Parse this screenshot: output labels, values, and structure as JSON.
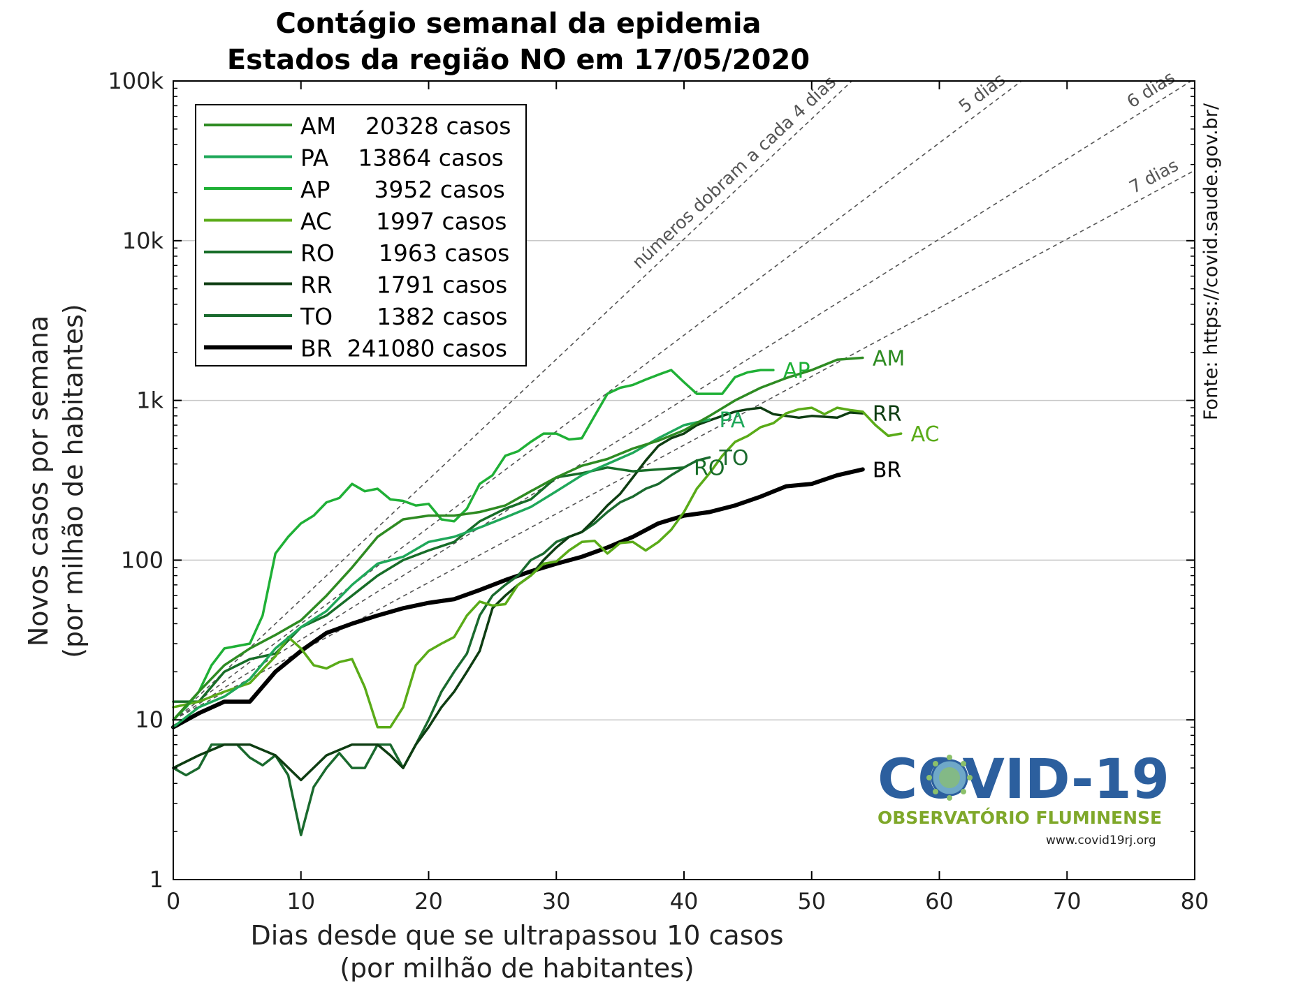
{
  "title_line1": "Contágio semanal da epidemia",
  "title_line2": "Estados da região NO em 17/05/2020",
  "source": "Fonte: https://covid.saude.gov.br/",
  "logo": {
    "main": "COVID-19",
    "sub": "OBSERVATÓRIO FLUMINENSE",
    "url": "www.covid19rj.org"
  },
  "chart_data": {
    "type": "line",
    "title": "Contágio semanal da epidemia / Estados da região NO em 17/05/2020",
    "xlabel_line1": "Dias desde que se ultrapassou 10 casos",
    "xlabel_line2": "(por milhão de habitantes)",
    "ylabel_line1": "Novos casos por semana",
    "ylabel_line2": "(por milhão de habitantes)",
    "xlim": [
      0,
      80
    ],
    "ylim": [
      1,
      100000
    ],
    "yscale": "log",
    "grid": "horizontal",
    "legend_position": "top-left",
    "x_ticks": [
      0,
      10,
      20,
      30,
      40,
      50,
      60,
      70,
      80
    ],
    "x_tick_labels": [
      "0",
      "10",
      "20",
      "30",
      "40",
      "50",
      "60",
      "70",
      "80"
    ],
    "y_ticks": [
      1,
      10,
      100,
      1000,
      10000,
      100000
    ],
    "y_tick_labels": [
      "1",
      "10",
      "100",
      "1k",
      "10k",
      "100k"
    ],
    "doubling_lines": [
      {
        "days": 4,
        "label": "números dobram a cada 4 dias"
      },
      {
        "days": 5,
        "label": "5 dias"
      },
      {
        "days": 6,
        "label": "6 dias"
      },
      {
        "days": 7,
        "label": "7 dias"
      }
    ],
    "doubling_origin_y": 10,
    "series": [
      {
        "name": "AM",
        "legend": "AM    20328 casos",
        "color": "#2e8b22",
        "end_label": "AM",
        "x": [
          0,
          2,
          4,
          6,
          8,
          10,
          12,
          14,
          16,
          18,
          20,
          22,
          24,
          26,
          28,
          30,
          32,
          34,
          36,
          38,
          40,
          42,
          44,
          46,
          48,
          50,
          52,
          54
        ],
        "y": [
          10,
          15,
          22,
          28,
          34,
          42,
          60,
          90,
          140,
          180,
          190,
          190,
          200,
          220,
          270,
          330,
          390,
          430,
          500,
          560,
          650,
          800,
          1000,
          1200,
          1380,
          1550,
          1800,
          1850
        ]
      },
      {
        "name": "PA",
        "legend": "PA    13864 casos",
        "color": "#1fa85a",
        "end_label": "PA",
        "x": [
          0,
          2,
          4,
          6,
          8,
          10,
          12,
          14,
          16,
          18,
          20,
          22,
          24,
          26,
          28,
          30,
          32,
          34,
          36,
          38,
          40,
          42
        ],
        "y": [
          9,
          12,
          14,
          18,
          28,
          38,
          48,
          70,
          95,
          105,
          130,
          140,
          160,
          185,
          215,
          270,
          340,
          400,
          470,
          580,
          700,
          760
        ]
      },
      {
        "name": "AP",
        "legend": "AP      3952 casos",
        "color": "#1fb036",
        "end_label": "AP",
        "x": [
          0,
          1,
          2,
          3,
          4,
          6,
          7,
          8,
          9,
          10,
          11,
          12,
          13,
          14,
          15,
          16,
          17,
          18,
          19,
          20,
          21,
          22,
          23,
          24,
          25,
          26,
          27,
          28,
          29,
          30,
          31,
          32,
          33,
          34,
          35,
          36,
          37,
          38,
          39,
          40,
          41,
          42,
          43,
          44,
          45,
          46,
          47
        ],
        "y": [
          10,
          12,
          15,
          22,
          28,
          30,
          45,
          110,
          140,
          170,
          190,
          230,
          245,
          300,
          270,
          280,
          240,
          235,
          220,
          225,
          180,
          175,
          210,
          300,
          340,
          450,
          480,
          550,
          620,
          620,
          570,
          580,
          800,
          1100,
          1200,
          1250,
          1350,
          1450,
          1550,
          1300,
          1100,
          1100,
          1100,
          1400,
          1500,
          1550,
          1550
        ]
      },
      {
        "name": "AC",
        "legend": "AC      1997 casos",
        "color": "#5aab18",
        "end_label": "AC",
        "x": [
          0,
          2,
          4,
          6,
          8,
          9,
          10,
          11,
          12,
          13,
          14,
          15,
          16,
          17,
          18,
          19,
          20,
          21,
          22,
          23,
          24,
          25,
          26,
          27,
          28,
          29,
          30,
          31,
          32,
          33,
          34,
          35,
          36,
          37,
          38,
          39,
          40,
          41,
          42,
          43,
          44,
          45,
          46,
          47,
          48,
          49,
          50,
          51,
          52,
          53,
          54,
          55,
          56,
          57
        ],
        "y": [
          12,
          13,
          15,
          17,
          25,
          33,
          28,
          22,
          21,
          23,
          24,
          16,
          9,
          9,
          12,
          22,
          27,
          30,
          33,
          45,
          55,
          52,
          53,
          70,
          80,
          95,
          98,
          115,
          130,
          132,
          110,
          128,
          130,
          115,
          130,
          155,
          200,
          280,
          350,
          450,
          550,
          600,
          680,
          720,
          830,
          880,
          900,
          820,
          900,
          870,
          850,
          700,
          600,
          620
        ]
      },
      {
        "name": "RO",
        "legend": "RO      1963 casos",
        "color": "#176d28",
        "end_label": "RO",
        "x": [
          0,
          2,
          4,
          6,
          8,
          10,
          12,
          14,
          16,
          18,
          20,
          22,
          24,
          26,
          28,
          30,
          32,
          34,
          36,
          38,
          40
        ],
        "y": [
          13,
          13,
          20,
          24,
          26,
          38,
          45,
          60,
          80,
          100,
          115,
          130,
          175,
          210,
          240,
          330,
          350,
          380,
          360,
          370,
          380
        ]
      },
      {
        "name": "RR",
        "legend": "RR      1791 casos",
        "color": "#0e3d12",
        "end_label": "RR",
        "x": [
          0,
          2,
          4,
          6,
          8,
          10,
          12,
          14,
          16,
          17,
          18,
          19,
          20,
          21,
          22,
          23,
          24,
          25,
          26,
          27,
          28,
          29,
          30,
          31,
          32,
          33,
          34,
          35,
          36,
          37,
          38,
          39,
          40,
          41,
          42,
          43,
          44,
          45,
          46,
          47,
          48,
          49,
          50,
          51,
          52,
          53,
          54
        ],
        "y": [
          5,
          6,
          7,
          7,
          6,
          4.2,
          6,
          7,
          7,
          6,
          5,
          7,
          9,
          12,
          15,
          20,
          27,
          50,
          60,
          70,
          80,
          100,
          120,
          140,
          150,
          180,
          220,
          260,
          330,
          420,
          520,
          580,
          620,
          700,
          750,
          800,
          850,
          880,
          900,
          820,
          800,
          780,
          800,
          790,
          780,
          840,
          830
        ]
      },
      {
        "name": "TO",
        "legend": "TO      1382 casos",
        "color": "#1a6a2e",
        "end_label": "TO",
        "x": [
          0,
          1,
          2,
          3,
          4,
          5,
          6,
          7,
          8,
          9,
          10,
          11,
          12,
          13,
          14,
          15,
          16,
          17,
          18,
          19,
          20,
          21,
          22,
          23,
          24,
          25,
          26,
          27,
          28,
          29,
          30,
          31,
          32,
          33,
          34,
          35,
          36,
          37,
          38,
          39,
          40,
          41,
          42
        ],
        "y": [
          5,
          4.5,
          5,
          7,
          7,
          7,
          5.8,
          5.2,
          6,
          4.5,
          1.9,
          3.8,
          5,
          6.2,
          5,
          5,
          7,
          7,
          5,
          7,
          10,
          15,
          20,
          26,
          45,
          60,
          70,
          80,
          100,
          110,
          130,
          140,
          150,
          170,
          200,
          230,
          250,
          280,
          300,
          340,
          380,
          420,
          440
        ]
      },
      {
        "name": "BR",
        "legend": "BR  241080 casos",
        "color": "#000000",
        "end_label": "BR",
        "thick": true,
        "x": [
          0,
          2,
          4,
          6,
          8,
          10,
          12,
          14,
          16,
          18,
          20,
          22,
          24,
          26,
          28,
          30,
          32,
          34,
          36,
          38,
          40,
          42,
          44,
          46,
          48,
          50,
          52,
          54
        ],
        "y": [
          9,
          11,
          13,
          13,
          20,
          27,
          35,
          40,
          45,
          50,
          54,
          57,
          65,
          75,
          85,
          95,
          105,
          120,
          140,
          170,
          190,
          200,
          220,
          250,
          290,
          300,
          340,
          370
        ]
      }
    ]
  }
}
